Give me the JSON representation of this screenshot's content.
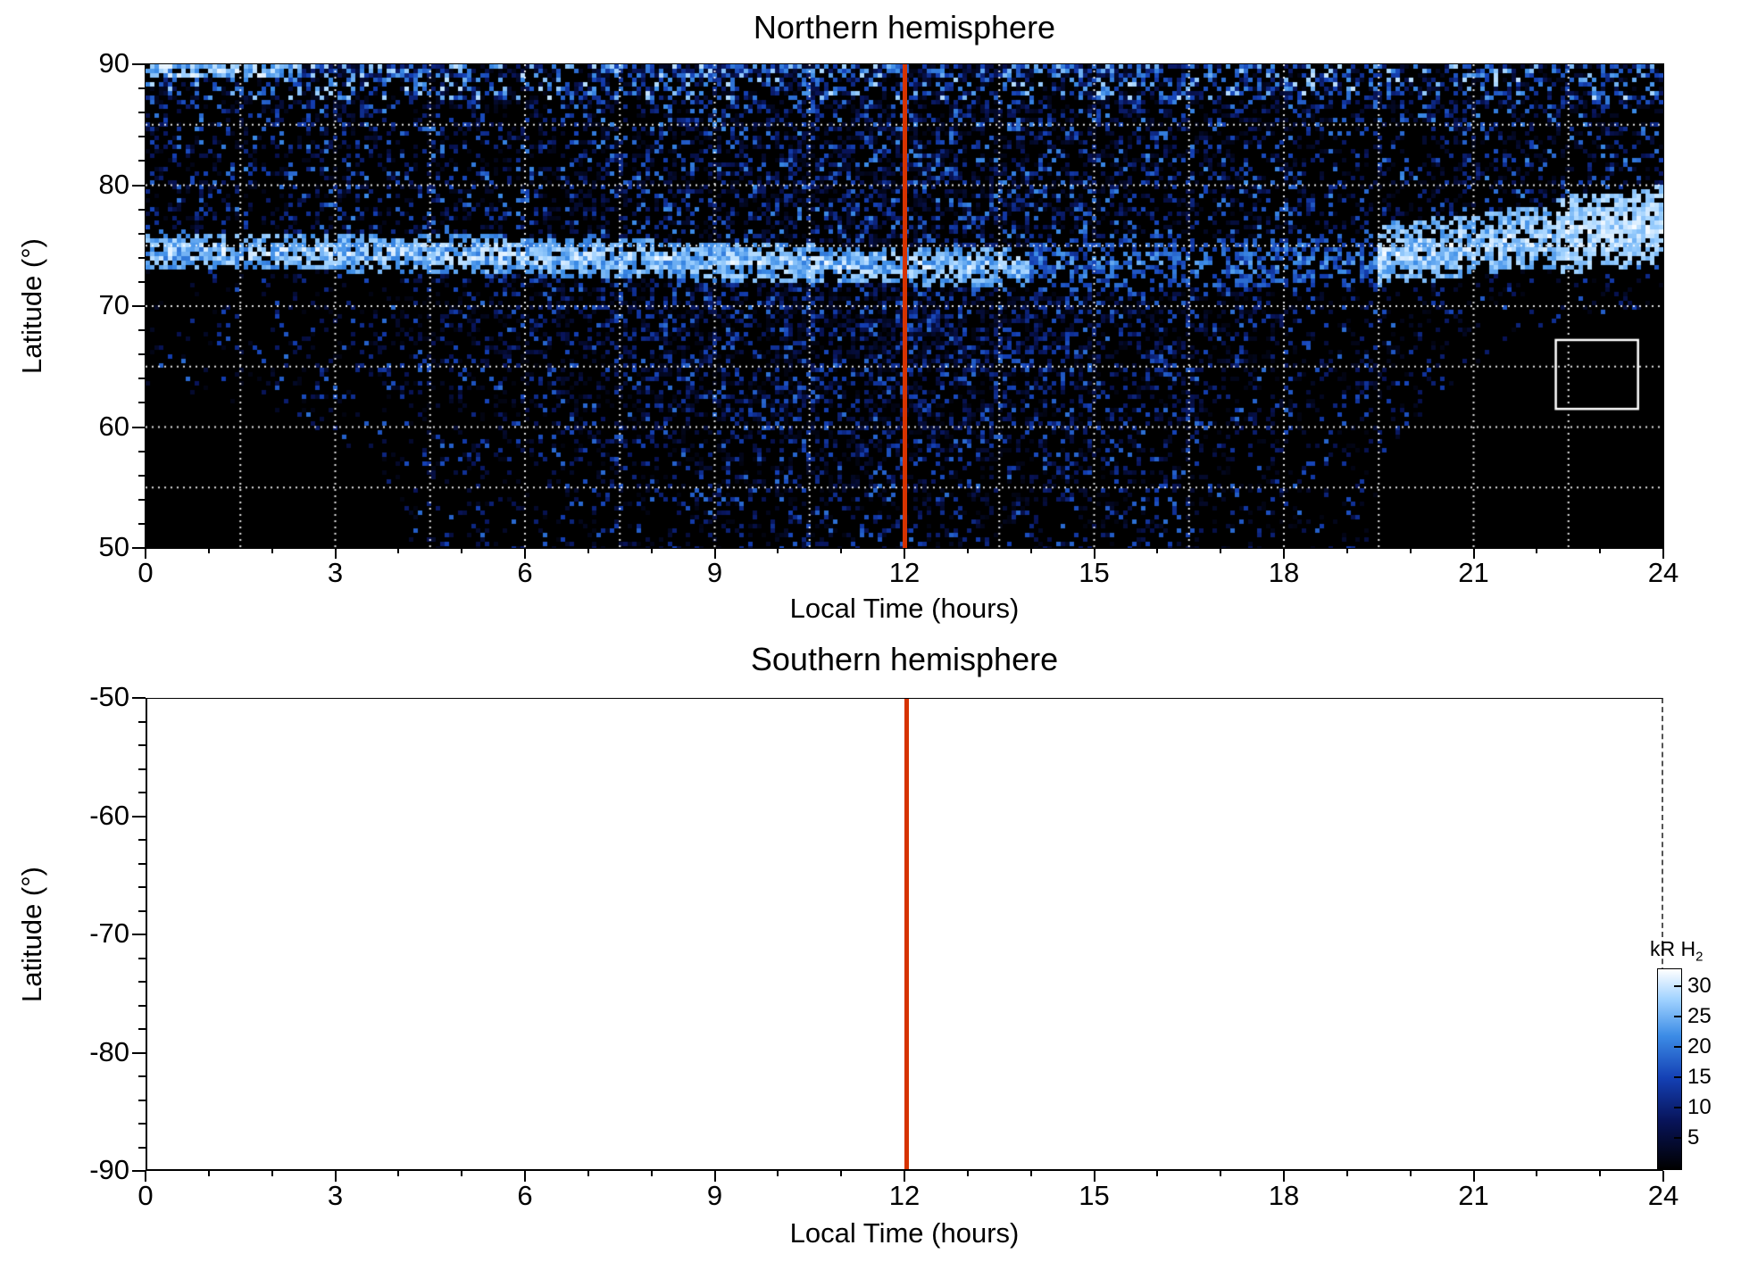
{
  "figure": {
    "background": "#ffffff"
  },
  "chart_data": [
    {
      "id": "north",
      "type": "heatmap",
      "title": "Northern hemisphere",
      "xlabel": "Local Time (hours)",
      "ylabel": "Latitude (°)",
      "xlim": [
        0,
        24
      ],
      "ylim": [
        50,
        90
      ],
      "xticks": [
        0,
        3,
        6,
        9,
        12,
        15,
        18,
        21,
        24
      ],
      "yticks": [
        90,
        80,
        70,
        60,
        50
      ],
      "plot_background": "#000000",
      "grid": {
        "show": true,
        "line_style": "dotted",
        "color": "#ffffff",
        "x_step_hours": 1.5,
        "y_step_degrees": 5
      },
      "noon_line": {
        "x": 12,
        "color": "#d63300"
      },
      "units": "kR H2",
      "value_range": [
        0,
        33
      ],
      "features": {
        "auroral_band": {
          "latitude_center": 74,
          "latitude_halfwidth": 1.6,
          "typical_value_kR": 28,
          "description": "Bright near-white auroral emission band around 73-76° latitude at all local times, brightest near 21-24 h and on the dayside"
        },
        "diffuse_emission": {
          "latitude_range": [
            50,
            72
          ],
          "local_time_peak": 12,
          "typical_value_kR": 8,
          "description": "Patchy dim blue emission filling mid-latitudes, densest around local noon, fading toward dawn/dusk edges"
        },
        "polar_emission": {
          "latitude_range": [
            76,
            90
          ],
          "typical_value_kR": 7,
          "description": "Sparse patchy emission poleward of the band with bright streaks near 88-90°"
        },
        "no_data_regions": [
          {
            "shape": "ellipse",
            "center": [
              0,
              50
            ],
            "rx_hours": 4.2,
            "ry_degrees": 13
          },
          {
            "shape": "ellipse",
            "center": [
              24,
              50
            ],
            "rx_hours": 4.6,
            "ry_degrees": 20
          }
        ]
      },
      "highlight_box": {
        "x0": 22.3,
        "x1": 23.6,
        "lat0": 61.5,
        "lat1": 67.2,
        "color": "#ffffff"
      }
    },
    {
      "id": "south",
      "type": "heatmap",
      "title": "Southern hemisphere",
      "xlabel": "Local Time (hours)",
      "ylabel": "Latitude (°)",
      "xlim": [
        0,
        24
      ],
      "ylim": [
        -90,
        -50
      ],
      "xticks": [
        0,
        3,
        6,
        9,
        12,
        15,
        18,
        21,
        24
      ],
      "yticks": [
        -50,
        -60,
        -70,
        -80,
        -90
      ],
      "plot_background": "#ffffff",
      "noon_line": {
        "x": 12,
        "color": "#d63300"
      },
      "data_points": "none visible (empty panel)"
    }
  ],
  "colorbar": {
    "label_prefix": "kR H",
    "label_subscript": "2",
    "ticks": [
      30,
      25,
      20,
      15,
      10,
      5
    ],
    "value_range": [
      0,
      33
    ],
    "gradient_stops": [
      {
        "value": 0,
        "color": "#000000"
      },
      {
        "value": 8,
        "color": "#08145a"
      },
      {
        "value": 15,
        "color": "#1440b4"
      },
      {
        "value": 22,
        "color": "#3c8ce6"
      },
      {
        "value": 28,
        "color": "#a0d2ff"
      },
      {
        "value": 33,
        "color": "#ffffff"
      }
    ]
  }
}
